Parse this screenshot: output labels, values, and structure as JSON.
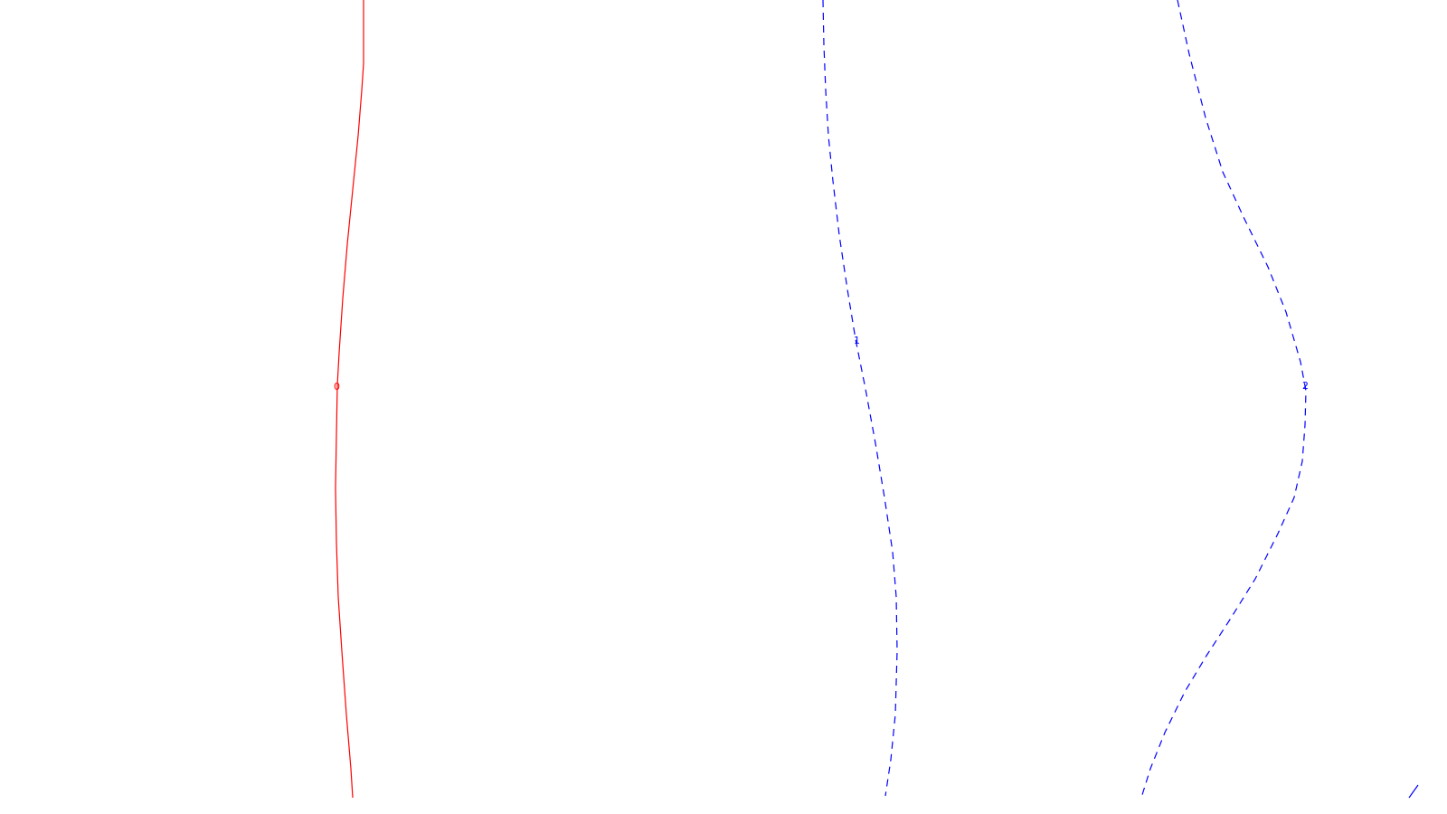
{
  "contours": [
    {
      "label": "0",
      "color": "#ff0000",
      "style": "solid"
    },
    {
      "label": "1",
      "color": "#0000ff",
      "style": "dashed"
    },
    {
      "label": "2",
      "color": "#0000ff",
      "style": "dashed"
    }
  ]
}
